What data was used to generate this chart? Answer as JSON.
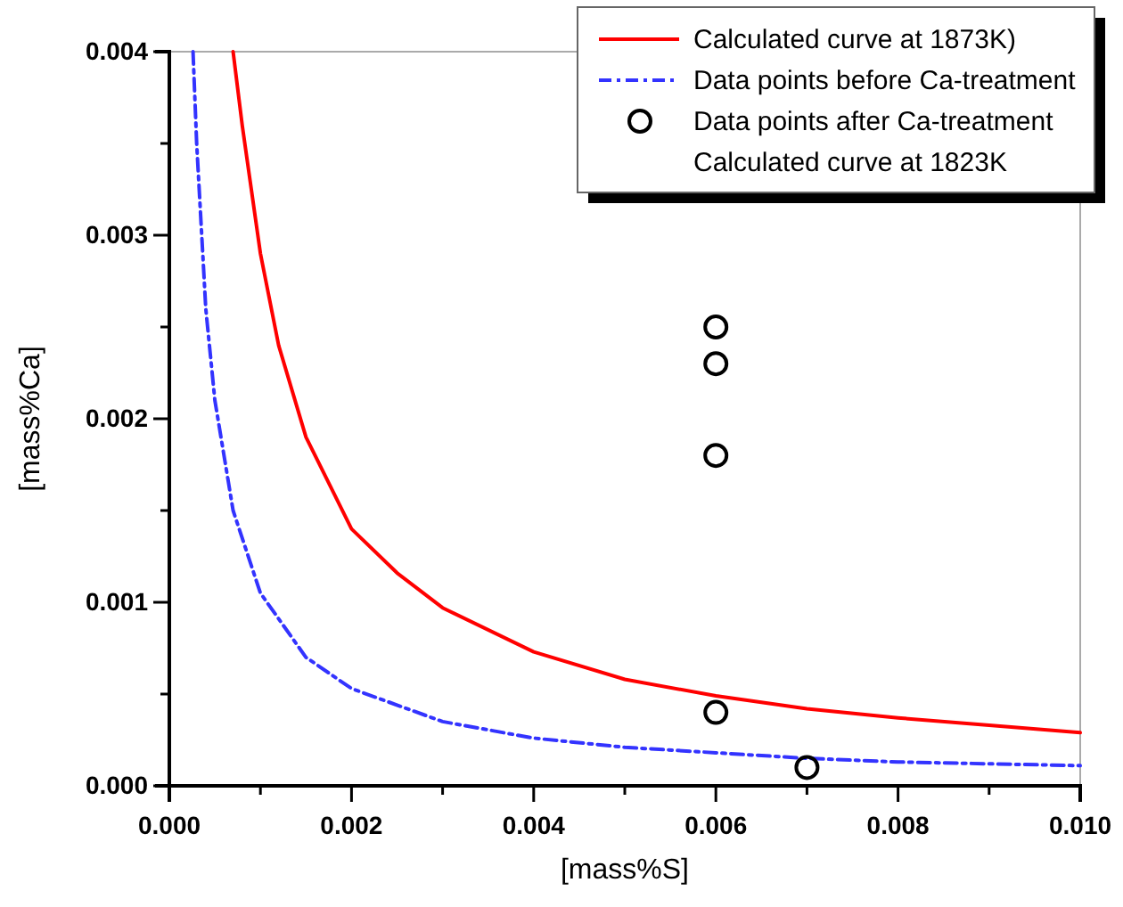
{
  "chart_data": {
    "type": "line",
    "xlabel": "[mass%S]",
    "ylabel": "[mass%Ca]",
    "xlim": [
      0,
      0.01
    ],
    "ylim": [
      0,
      0.004
    ],
    "xticks": [
      {
        "value": 0,
        "label": "0.000"
      },
      {
        "value": 0.001,
        "label": null
      },
      {
        "value": 0.002,
        "label": "0.002"
      },
      {
        "value": 0.003,
        "label": null
      },
      {
        "value": 0.004,
        "label": "0.004"
      },
      {
        "value": 0.005,
        "label": null
      },
      {
        "value": 0.006,
        "label": "0.006"
      },
      {
        "value": 0.007,
        "label": null
      },
      {
        "value": 0.008,
        "label": "0.008"
      },
      {
        "value": 0.009,
        "label": null
      },
      {
        "value": 0.01,
        "label": "0.010"
      }
    ],
    "yticks": [
      {
        "value": 0,
        "label": "0.000"
      },
      {
        "value": 0.0005,
        "label": null
      },
      {
        "value": 0.001,
        "label": "0.001"
      },
      {
        "value": 0.0015,
        "label": null
      },
      {
        "value": 0.002,
        "label": "0.002"
      },
      {
        "value": 0.0025,
        "label": null
      },
      {
        "value": 0.003,
        "label": "0.003"
      },
      {
        "value": 0.0035,
        "label": null
      },
      {
        "value": 0.004,
        "label": "0.004"
      }
    ],
    "grid": false,
    "legend": "top right",
    "series": [
      {
        "name": "Calculated curve at 1873K)",
        "color": "#ff0000",
        "line_style": "solid",
        "marker": "none",
        "x": [
          0.0007,
          0.0008,
          0.001,
          0.0012,
          0.0015,
          0.002,
          0.0025,
          0.003,
          0.004,
          0.005,
          0.006,
          0.007,
          0.008,
          0.009,
          0.01
        ],
        "values": [
          0.004,
          0.0036,
          0.0029,
          0.0024,
          0.0019,
          0.0014,
          0.00116,
          0.00097,
          0.00073,
          0.00058,
          0.00049,
          0.00042,
          0.00037,
          0.00033,
          0.00029
        ]
      },
      {
        "name": "Data points before Ca-treatment",
        "color": "#3333ff",
        "line_style": "dashdot",
        "marker": "none",
        "x": [
          0.00026,
          0.0003,
          0.0004,
          0.0005,
          0.0007,
          0.001,
          0.0015,
          0.002,
          0.003,
          0.004,
          0.005,
          0.006,
          0.007,
          0.008,
          0.009,
          0.01
        ],
        "values": [
          0.004,
          0.0035,
          0.0026,
          0.0021,
          0.0015,
          0.00105,
          0.0007,
          0.00053,
          0.00035,
          0.00026,
          0.00021,
          0.00018,
          0.00015,
          0.00013,
          0.00012,
          0.00011
        ]
      },
      {
        "name": "Data points after Ca-treatment",
        "type": "scatter",
        "color": "#000000",
        "marker": "circle",
        "x": [
          0.006,
          0.006,
          0.006,
          0.006,
          0.007
        ],
        "values": [
          0.0025,
          0.0023,
          0.0018,
          0.0004,
          0.0001
        ]
      }
    ],
    "annotations": [
      "Calculated curve at 1823K"
    ]
  }
}
